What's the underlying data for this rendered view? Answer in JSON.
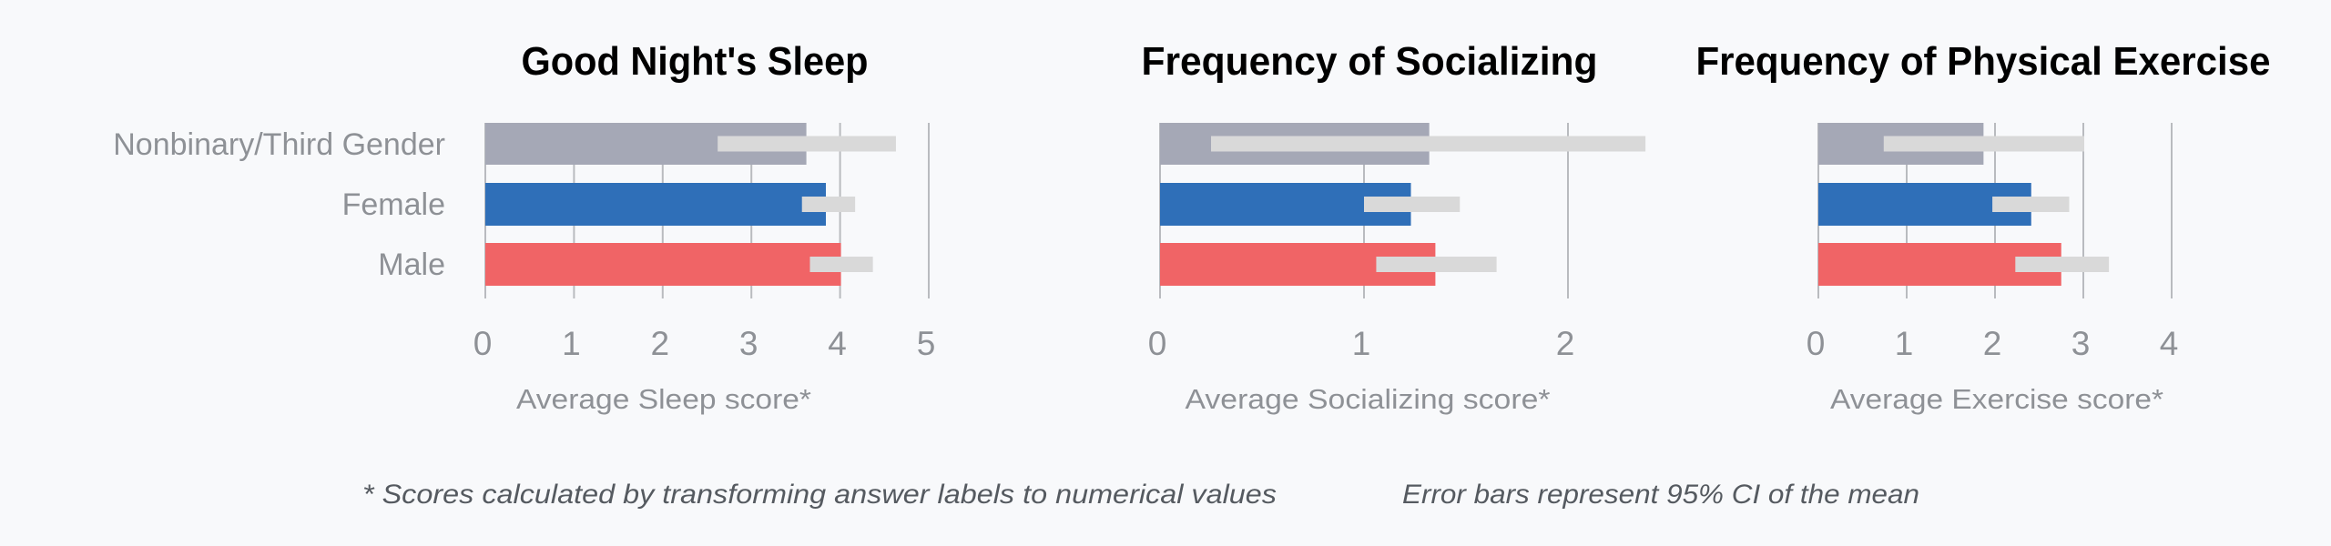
{
  "colors": {
    "background": "#f8f9fb",
    "grid": "#b9bbbf",
    "error_bar": "#d9d9d9",
    "series": {
      "Nonbinary/Third Gender": "#a5a8b6",
      "Female": "#2f6fb8",
      "Male": "#f06466"
    }
  },
  "categories": [
    "Nonbinary/Third Gender",
    "Female",
    "Male"
  ],
  "chart_data": [
    {
      "type": "bar",
      "orientation": "horizontal",
      "title": "Good Night's Sleep",
      "xlabel": "Average Sleep score*",
      "ylabel": "",
      "categories": [
        "Nonbinary/Third Gender",
        "Female",
        "Male"
      ],
      "values": [
        3.62,
        3.84,
        4.01
      ],
      "error_low": [
        2.62,
        3.57,
        3.66
      ],
      "error_high": [
        4.63,
        4.17,
        4.37
      ],
      "xlim": [
        0,
        5
      ],
      "ticks": [
        "0",
        "1",
        "2",
        "3",
        "4",
        "5"
      ],
      "grid": true
    },
    {
      "type": "bar",
      "orientation": "horizontal",
      "title": "Frequency of Socializing",
      "xlabel": "Average Socializing score*",
      "ylabel": "",
      "categories": [
        "Nonbinary/Third Gender",
        "Female",
        "Male"
      ],
      "values": [
        1.32,
        1.23,
        1.35
      ],
      "error_low": [
        0.25,
        1.0,
        1.06
      ],
      "error_high": [
        2.38,
        1.47,
        1.65
      ],
      "xlim": [
        0,
        2
      ],
      "ticks": [
        "0",
        "1",
        "2"
      ],
      "grid": true
    },
    {
      "type": "bar",
      "orientation": "horizontal",
      "title": "Frequency of Physical Exercise",
      "xlabel": "Average Exercise score*",
      "ylabel": "",
      "categories": [
        "Nonbinary/Third Gender",
        "Female",
        "Male"
      ],
      "values": [
        1.87,
        2.41,
        2.75
      ],
      "error_low": [
        0.74,
        1.97,
        2.23
      ],
      "error_high": [
        3.01,
        2.84,
        3.29
      ],
      "xlim": [
        0,
        4
      ],
      "ticks": [
        "0",
        "1",
        "2",
        "3",
        "4"
      ],
      "grid": true
    }
  ],
  "footnotes": {
    "scores": "* Scores calculated by transforming answer labels to numerical values",
    "error_bars": "Error bars represent 95% CI of the mean"
  }
}
